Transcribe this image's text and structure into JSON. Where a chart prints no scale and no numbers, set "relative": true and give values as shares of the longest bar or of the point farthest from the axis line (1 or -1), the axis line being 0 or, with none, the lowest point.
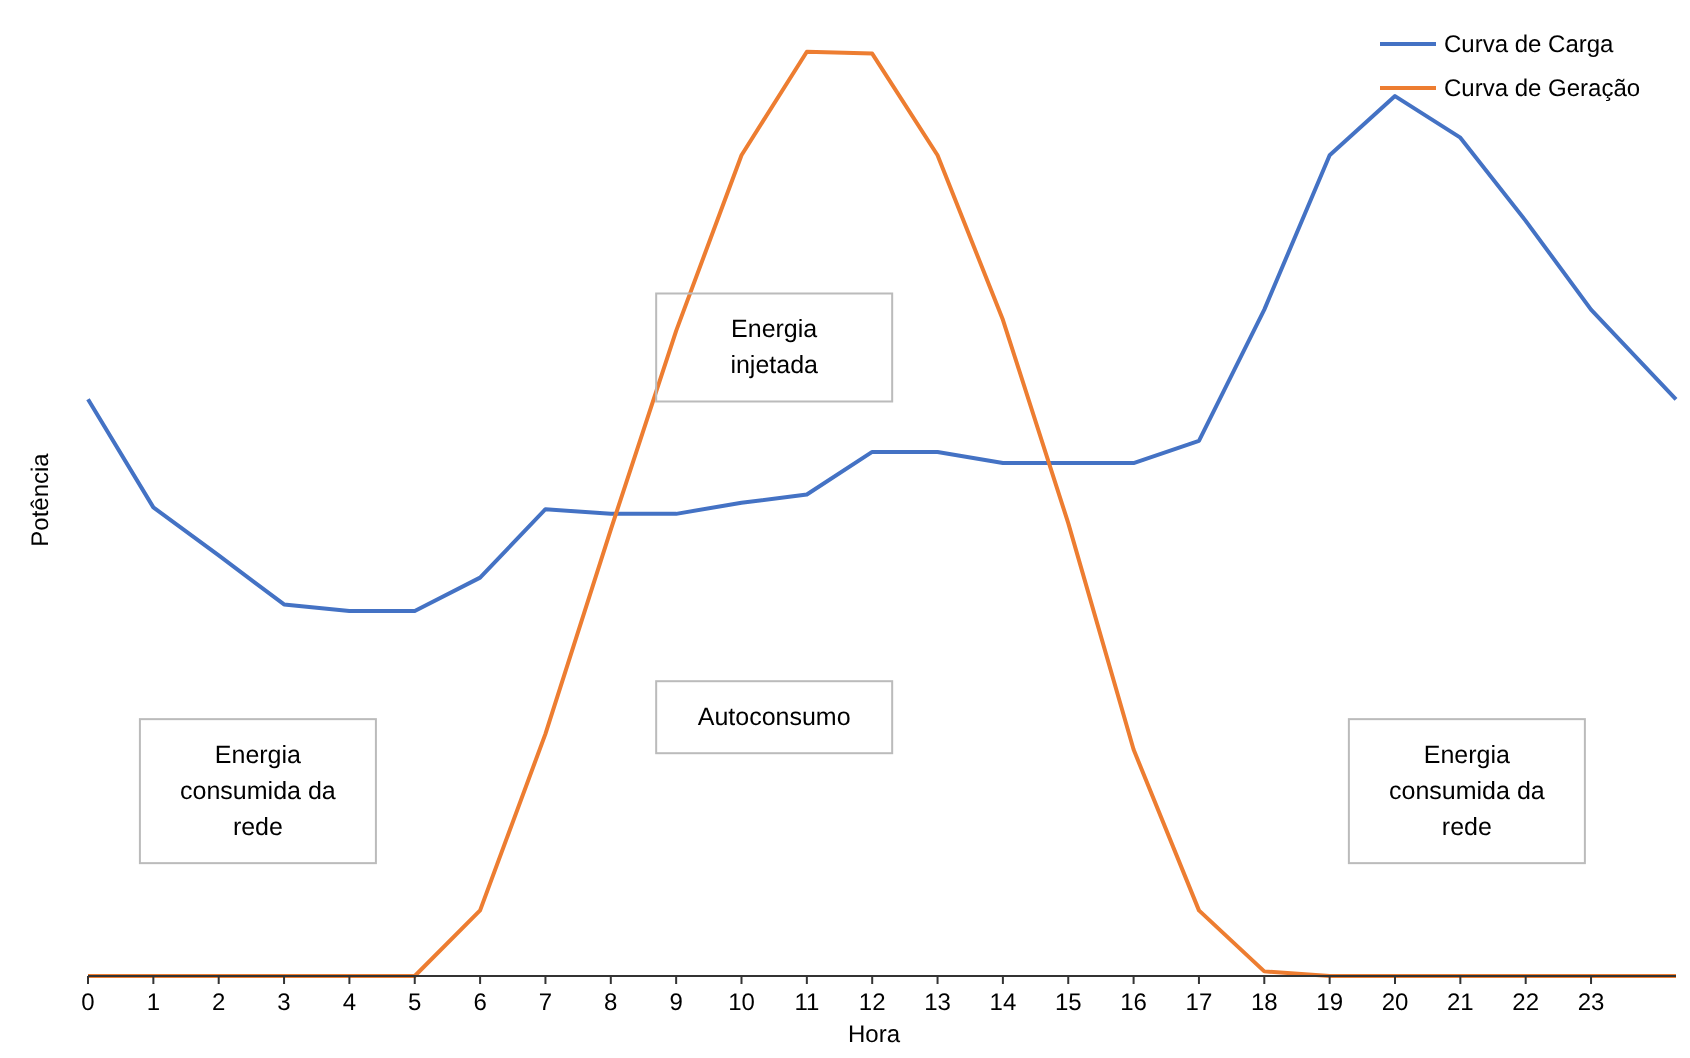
{
  "chart_data": {
    "type": "line",
    "relative": true,
    "xlabel": "Hora",
    "ylabel": "Potência",
    "xlim": [
      0,
      24.3
    ],
    "xticks": [
      0,
      1,
      2,
      3,
      4,
      5,
      6,
      7,
      8,
      9,
      10,
      11,
      12,
      13,
      14,
      15,
      16,
      17,
      18,
      19,
      20,
      21,
      22,
      23
    ],
    "legend": "top right",
    "marker": "none",
    "line_style": "solid",
    "series": [
      {
        "name": "Curva de Carga",
        "color": "#4472c4",
        "x": [
          0,
          1,
          2,
          3,
          4,
          5,
          6,
          7,
          8,
          9,
          10,
          11,
          12,
          13,
          14,
          15,
          16,
          17,
          18,
          19,
          20,
          21,
          22,
          23,
          24.3
        ],
        "values": [
          0.624,
          0.507,
          0.455,
          0.402,
          0.395,
          0.395,
          0.431,
          0.505,
          0.5,
          0.5,
          0.512,
          0.521,
          0.567,
          0.567,
          0.555,
          0.555,
          0.555,
          0.579,
          0.721,
          0.888,
          0.952,
          0.907,
          0.817,
          0.721,
          0.624
        ]
      },
      {
        "name": "Curva de Geração",
        "color": "#ed7d31",
        "x": [
          0,
          1,
          2,
          3,
          4,
          5,
          6,
          7,
          8,
          9,
          10,
          11,
          12,
          13,
          14,
          15,
          16,
          17,
          18,
          19,
          20,
          21,
          22,
          23,
          24.3
        ],
        "values": [
          0,
          0,
          0,
          0,
          0,
          0,
          0.071,
          0.262,
          0.483,
          0.698,
          0.888,
          1,
          0.998,
          0.888,
          0.71,
          0.49,
          0.245,
          0.071,
          0.005,
          0,
          0,
          0,
          0,
          0,
          0
        ]
      }
    ],
    "annotations": [
      "Energia injetada",
      "Autoconsumo",
      "Energia consumida da rede",
      "Energia consumida da rede"
    ]
  }
}
